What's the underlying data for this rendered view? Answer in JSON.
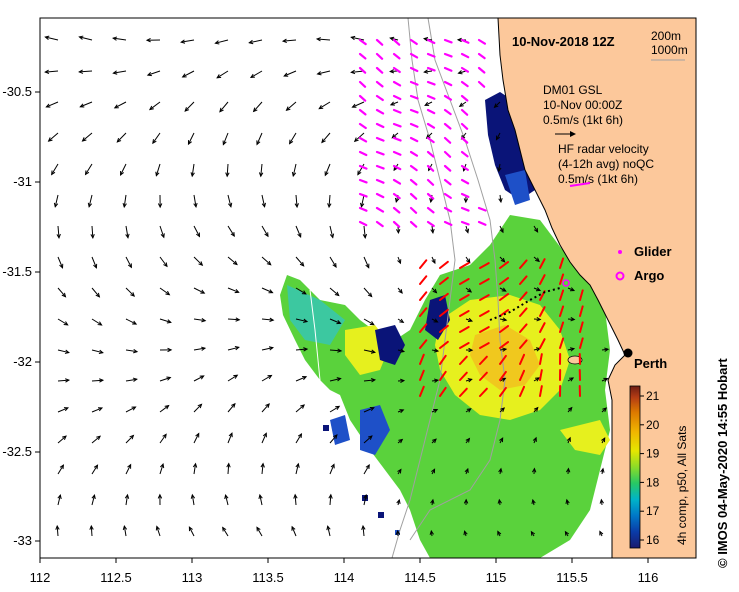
{
  "map": {
    "title": "10-Nov-2018 12Z",
    "x_ticks": [
      "112",
      "112.5",
      "113",
      "113.5",
      "114",
      "114.5",
      "115",
      "115.5",
      "116"
    ],
    "y_ticks": [
      "-30.5",
      "-31",
      "-31.5",
      "-32",
      "-32.5",
      "-33"
    ],
    "depth_legend": [
      "200m",
      "1000m"
    ],
    "mooring": {
      "name": "DM01 GSL",
      "time": "10-Nov 00:00Z",
      "scale": "0.5m/s (1kt 6h)"
    },
    "hf_radar": {
      "title": "HF radar velocity",
      "subtitle": "(4-12h avg) noQC",
      "scale": "0.5m/s (1kt 6h)"
    },
    "legend_glider": "Glider",
    "legend_argo": "Argo",
    "city": "Perth",
    "colorbar": {
      "ticks": [
        "16",
        "17",
        "18",
        "19",
        "20",
        "21"
      ],
      "label": "4h comp, p50, All Sats",
      "colors": [
        "#1a1a6e",
        "#0a3ca8",
        "#0078c8",
        "#00b4c8",
        "#28c864",
        "#8cdc28",
        "#e6e600",
        "#f0b400",
        "#dc7800",
        "#b43c14",
        "#6e1e14"
      ]
    },
    "credit": "© IMOS 04-May-2020 14:55 Hobart",
    "colors": {
      "land": "#fcc89b",
      "magenta": "#ff00ff",
      "red": "#ff0000",
      "sst_green": "#5ad23c",
      "sst_yellow": "#e6f01e",
      "sst_navy": "#0a1478",
      "sst_blue": "#1e50c8"
    }
  }
}
